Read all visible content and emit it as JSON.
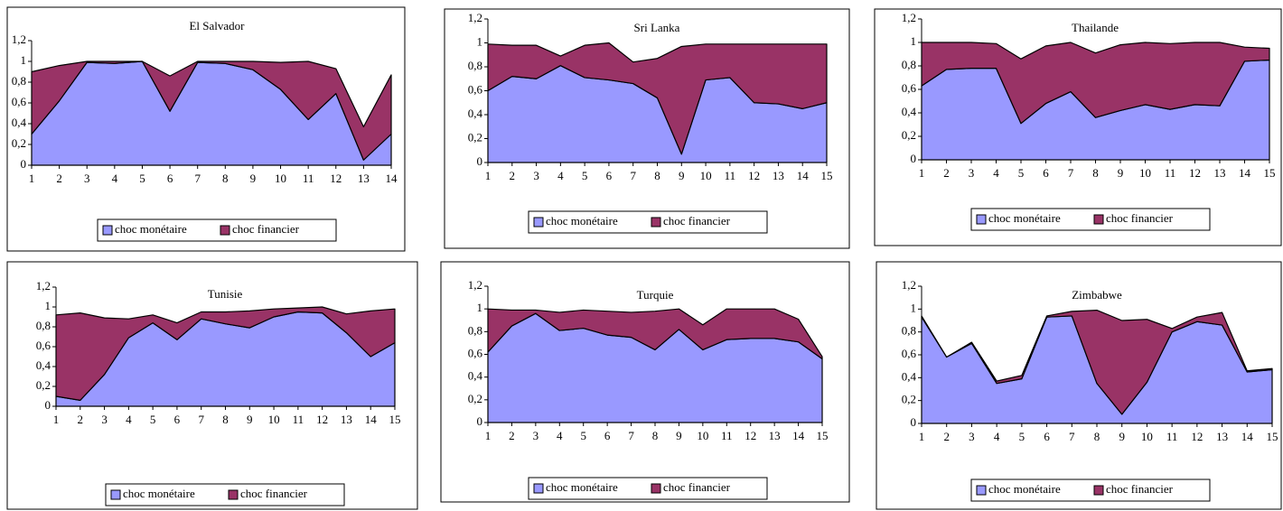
{
  "chart_data": [
    {
      "type": "area",
      "stacked": true,
      "title": "El Salvador",
      "categories": [
        1,
        2,
        3,
        4,
        5,
        6,
        7,
        8,
        9,
        10,
        11,
        12,
        13,
        14
      ],
      "series": [
        {
          "name": "choc monétaire",
          "color": "#9999ff",
          "values": [
            0.3,
            0.62,
            0.99,
            0.98,
            1.0,
            0.52,
            0.99,
            0.98,
            0.92,
            0.73,
            0.44,
            0.69,
            0.05,
            0.3
          ]
        },
        {
          "name": "choc financier",
          "color": "#993366",
          "values": [
            0.6,
            0.34,
            0.01,
            0.02,
            0,
            0.34,
            0.01,
            0.02,
            0.08,
            0.26,
            0.56,
            0.24,
            0.32,
            0.57
          ]
        }
      ],
      "ylim": [
        0,
        1.2
      ],
      "yticks": [
        0,
        {
          "value": 0.2,
          "label": "0,2"
        },
        {
          "value": 0.4,
          "label": "0,4"
        },
        {
          "value": 0.6,
          "label": "0,6"
        },
        {
          "value": 0.8,
          "label": "0,8"
        },
        1,
        {
          "value": 1.2,
          "label": "1,2"
        }
      ],
      "grid": false,
      "legend": "bottom"
    },
    {
      "type": "area",
      "stacked": true,
      "title": "Sri Lanka",
      "categories": [
        1,
        2,
        3,
        4,
        5,
        6,
        7,
        8,
        9,
        10,
        11,
        12,
        13,
        14,
        15
      ],
      "series": [
        {
          "name": "choc monétaire",
          "color": "#9999ff",
          "values": [
            0.6,
            0.72,
            0.7,
            0.81,
            0.71,
            0.69,
            0.66,
            0.54,
            0.07,
            0.69,
            0.71,
            0.5,
            0.49,
            0.45,
            0.5
          ]
        },
        {
          "name": "choc financier",
          "color": "#993366",
          "values": [
            0.39,
            0.26,
            0.28,
            0.08,
            0.27,
            0.31,
            0.18,
            0.33,
            0.9,
            0.3,
            0.28,
            0.49,
            0.5,
            0.54,
            0.49
          ]
        }
      ],
      "ylim": [
        0,
        1.2
      ],
      "yticks": [
        0,
        {
          "value": 0.2,
          "label": "0,2"
        },
        {
          "value": 0.4,
          "label": "0,4"
        },
        {
          "value": 0.6,
          "label": "0,6"
        },
        {
          "value": 0.8,
          "label": "0,8"
        },
        1,
        {
          "value": 1.2,
          "label": "1,2"
        }
      ],
      "grid": false,
      "legend": "bottom"
    },
    {
      "type": "area",
      "stacked": true,
      "title": "Thailande",
      "categories": [
        1,
        2,
        3,
        4,
        5,
        6,
        7,
        8,
        9,
        10,
        11,
        12,
        13,
        14,
        15
      ],
      "series": [
        {
          "name": "choc monétaire",
          "color": "#9999ff",
          "values": [
            0.63,
            0.77,
            0.78,
            0.78,
            0.31,
            0.48,
            0.58,
            0.36,
            0.42,
            0.47,
            0.43,
            0.47,
            0.46,
            0.84,
            0.85
          ]
        },
        {
          "name": "choc financier",
          "color": "#993366",
          "values": [
            0.37,
            0.23,
            0.22,
            0.21,
            0.55,
            0.49,
            0.42,
            0.55,
            0.56,
            0.53,
            0.56,
            0.53,
            0.54,
            0.12,
            0.1
          ]
        }
      ],
      "ylim": [
        0,
        1.2
      ],
      "yticks": [
        0,
        {
          "value": 0.2,
          "label": "0,2"
        },
        {
          "value": 0.4,
          "label": "0,4"
        },
        {
          "value": 0.6,
          "label": "0,6"
        },
        {
          "value": 0.8,
          "label": "0,8"
        },
        1,
        {
          "value": 1.2,
          "label": "1,2"
        }
      ],
      "grid": false,
      "legend": "bottom"
    },
    {
      "type": "area",
      "stacked": true,
      "title": "Tunisie",
      "categories": [
        1,
        2,
        3,
        4,
        5,
        6,
        7,
        8,
        9,
        10,
        11,
        12,
        13,
        14,
        15
      ],
      "series": [
        {
          "name": "choc monétaire",
          "color": "#9999ff",
          "values": [
            0.1,
            0.06,
            0.32,
            0.69,
            0.84,
            0.67,
            0.88,
            0.83,
            0.79,
            0.9,
            0.95,
            0.94,
            0.74,
            0.5,
            0.64
          ]
        },
        {
          "name": "choc financier",
          "color": "#993366",
          "values": [
            0.82,
            0.88,
            0.57,
            0.19,
            0.08,
            0.17,
            0.07,
            0.12,
            0.17,
            0.08,
            0.04,
            0.06,
            0.19,
            0.46,
            0.34
          ]
        }
      ],
      "ylim": [
        0,
        1.2
      ],
      "yticks": [
        0,
        {
          "value": 0.2,
          "label": "0,2"
        },
        {
          "value": 0.4,
          "label": "0,4"
        },
        {
          "value": 0.6,
          "label": "0,6"
        },
        {
          "value": 0.8,
          "label": "0,8"
        },
        1,
        {
          "value": 1.2,
          "label": "1,2"
        }
      ],
      "grid": false,
      "legend": "bottom"
    },
    {
      "type": "area",
      "stacked": true,
      "title": "Turquie",
      "categories": [
        1,
        2,
        3,
        4,
        5,
        6,
        7,
        8,
        9,
        10,
        11,
        12,
        13,
        14,
        15
      ],
      "series": [
        {
          "name": "choc monétaire",
          "color": "#9999ff",
          "values": [
            0.62,
            0.85,
            0.96,
            0.81,
            0.83,
            0.77,
            0.75,
            0.64,
            0.82,
            0.64,
            0.73,
            0.74,
            0.74,
            0.71,
            0.56
          ]
        },
        {
          "name": "choc financier",
          "color": "#993366",
          "values": [
            0.38,
            0.14,
            0.03,
            0.16,
            0.16,
            0.21,
            0.22,
            0.34,
            0.18,
            0.22,
            0.27,
            0.26,
            0.26,
            0.2,
            0.02
          ]
        }
      ],
      "ylim": [
        0,
        1.2
      ],
      "yticks": [
        0,
        {
          "value": 0.2,
          "label": "0,2"
        },
        {
          "value": 0.4,
          "label": "0,4"
        },
        {
          "value": 0.6,
          "label": "0,6"
        },
        {
          "value": 0.8,
          "label": "0,8"
        },
        1,
        {
          "value": 1.2,
          "label": "1,2"
        }
      ],
      "grid": false,
      "legend": "bottom"
    },
    {
      "type": "area",
      "stacked": true,
      "title": "Zimbabwe",
      "categories": [
        1,
        2,
        3,
        4,
        5,
        6,
        7,
        8,
        9,
        10,
        11,
        12,
        13,
        14,
        15
      ],
      "series": [
        {
          "name": "choc monétaire",
          "color": "#9999ff",
          "values": [
            0.93,
            0.58,
            0.7,
            0.35,
            0.39,
            0.93,
            0.94,
            0.35,
            0.08,
            0.36,
            0.8,
            0.89,
            0.86,
            0.45,
            0.47
          ]
        },
        {
          "name": "choc financier",
          "color": "#993366",
          "values": [
            0.01,
            0,
            0.01,
            0.02,
            0.03,
            0.01,
            0.04,
            0.64,
            0.82,
            0.55,
            0.03,
            0.04,
            0.11,
            0.01,
            0.01
          ]
        }
      ],
      "ylim": [
        0,
        1.2
      ],
      "yticks": [
        0,
        {
          "value": 0.2,
          "label": "0,2"
        },
        {
          "value": 0.4,
          "label": "0,4"
        },
        {
          "value": 0.6,
          "label": "0,6"
        },
        {
          "value": 0.8,
          "label": "0,8"
        },
        1,
        {
          "value": 1.2,
          "label": "1,2"
        }
      ],
      "grid": false,
      "legend": "bottom"
    }
  ]
}
